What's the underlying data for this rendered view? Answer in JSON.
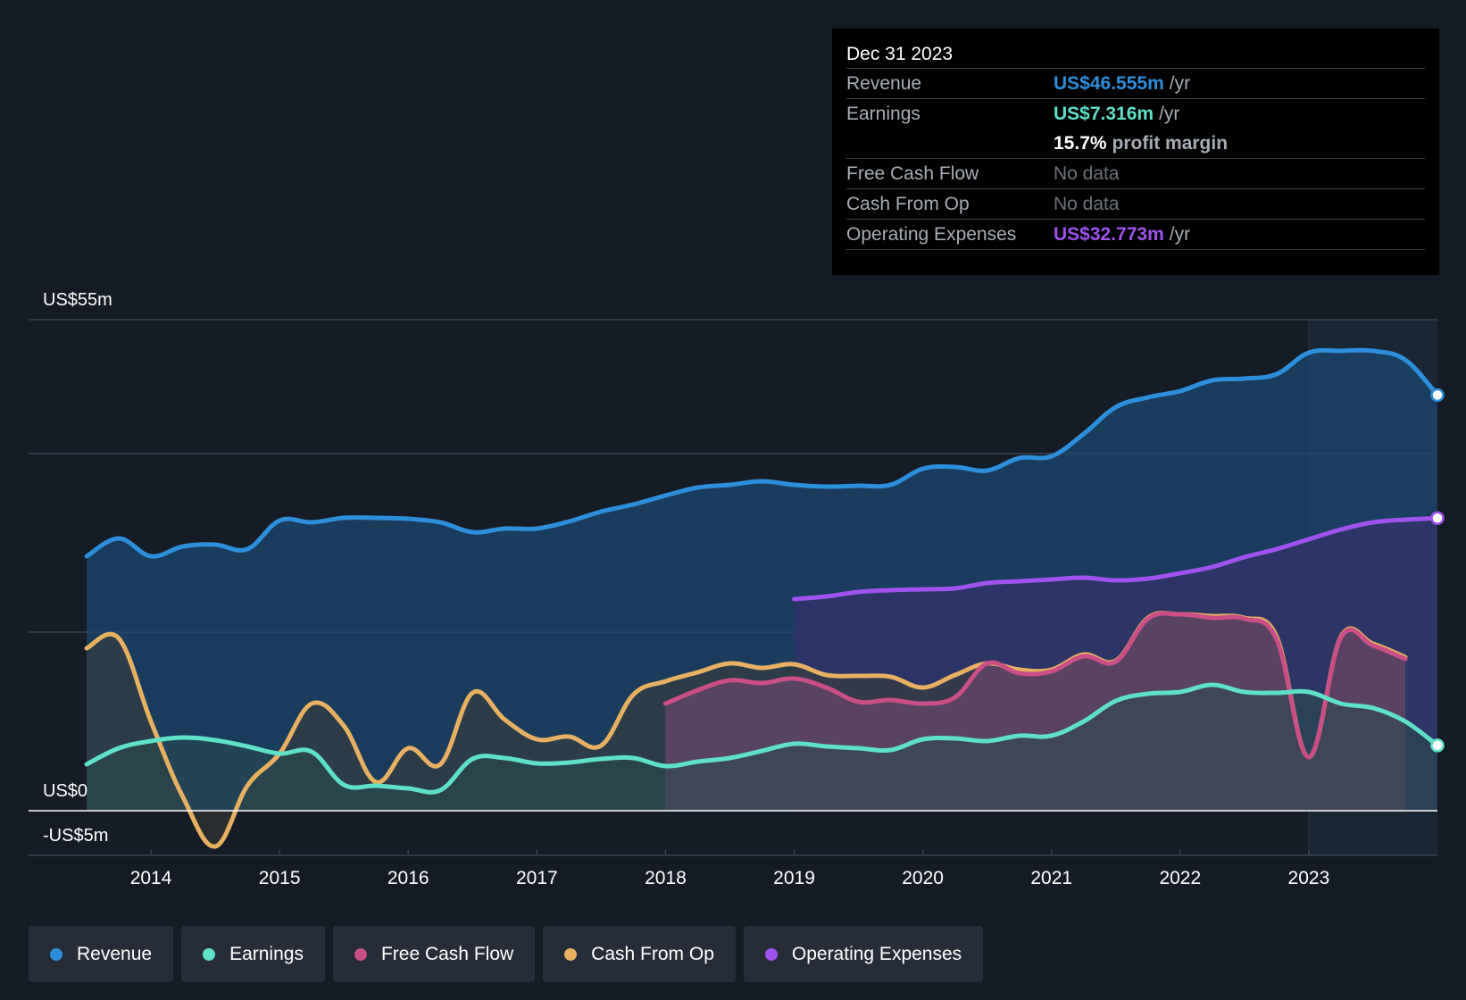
{
  "chart_data": {
    "type": "area",
    "ylim": [
      -5,
      55
    ],
    "y_labels": [
      {
        "value": 55,
        "label": "US$55m"
      },
      {
        "value": 0,
        "label": "US$0"
      },
      {
        "value": -5,
        "label": "-US$5m"
      }
    ],
    "gridlines": [
      55,
      40,
      20
    ],
    "x_ticks": [
      "2014",
      "2015",
      "2016",
      "2017",
      "2018",
      "2019",
      "2020",
      "2021",
      "2022",
      "2023"
    ],
    "x_tick_values": [
      2014,
      2015,
      2016,
      2017,
      2018,
      2019,
      2020,
      2021,
      2022,
      2023
    ],
    "xlim": [
      2013.5,
      2024.0
    ],
    "highlight_start": 2023.0,
    "series": [
      {
        "name": "Revenue",
        "color": "#2d8fdb",
        "fill": "#1c4a75",
        "x": [
          2013.5,
          2013.75,
          2014.0,
          2014.25,
          2014.5,
          2014.75,
          2015.0,
          2015.25,
          2015.5,
          2015.75,
          2016.0,
          2016.25,
          2016.5,
          2016.75,
          2017.0,
          2017.25,
          2017.5,
          2017.75,
          2018.0,
          2018.25,
          2018.5,
          2018.75,
          2019.0,
          2019.25,
          2019.5,
          2019.75,
          2020.0,
          2020.25,
          2020.5,
          2020.75,
          2021.0,
          2021.25,
          2021.5,
          2021.75,
          2022.0,
          2022.25,
          2022.5,
          2022.75,
          2023.0,
          2023.25,
          2023.5,
          2023.75,
          2024.0
        ],
        "values": [
          28.5,
          30.5,
          28.5,
          29.6,
          29.8,
          29.3,
          32.5,
          32.3,
          32.8,
          32.8,
          32.7,
          32.3,
          31.2,
          31.6,
          31.6,
          32.4,
          33.5,
          34.3,
          35.3,
          36.2,
          36.5,
          36.9,
          36.5,
          36.3,
          36.4,
          36.5,
          38.3,
          38.5,
          38.1,
          39.5,
          39.7,
          42.2,
          45.2,
          46.3,
          47.0,
          48.2,
          48.4,
          48.9,
          51.3,
          51.5,
          51.5,
          50.5,
          46.555
        ]
      },
      {
        "name": "Earnings",
        "color": "#5fe0c8",
        "fill": "#2a4a50",
        "x": [
          2013.5,
          2013.75,
          2014.0,
          2014.25,
          2014.5,
          2014.75,
          2015.0,
          2015.25,
          2015.5,
          2015.75,
          2016.0,
          2016.25,
          2016.5,
          2016.75,
          2017.0,
          2017.25,
          2017.5,
          2017.75,
          2018.0,
          2018.25,
          2018.5,
          2018.75,
          2019.0,
          2019.25,
          2019.5,
          2019.75,
          2020.0,
          2020.25,
          2020.5,
          2020.75,
          2021.0,
          2021.25,
          2021.5,
          2021.75,
          2022.0,
          2022.25,
          2022.5,
          2022.75,
          2023.0,
          2023.25,
          2023.5,
          2023.75,
          2024.0
        ],
        "values": [
          5.2,
          7.0,
          7.8,
          8.2,
          7.9,
          7.2,
          6.4,
          6.6,
          2.9,
          2.8,
          2.5,
          2.3,
          5.8,
          5.9,
          5.3,
          5.4,
          5.8,
          5.9,
          5.0,
          5.5,
          5.9,
          6.7,
          7.5,
          7.2,
          7.0,
          6.8,
          8.0,
          8.1,
          7.8,
          8.4,
          8.4,
          10.0,
          12.3,
          13.1,
          13.3,
          14.1,
          13.3,
          13.2,
          13.3,
          12.0,
          11.5,
          10.0,
          7.316
        ]
      },
      {
        "name": "Free Cash Flow",
        "color": "#c94f86",
        "fill": "#7a4a78",
        "x": [
          2018.0,
          2018.25,
          2018.5,
          2018.75,
          2019.0,
          2019.25,
          2019.5,
          2019.75,
          2020.0,
          2020.25,
          2020.5,
          2020.75,
          2021.0,
          2021.25,
          2021.5,
          2021.75,
          2022.0,
          2022.25,
          2022.5,
          2022.75,
          2023.0,
          2023.25,
          2023.5,
          2023.75
        ],
        "values": [
          12.0,
          13.5,
          14.6,
          14.3,
          14.8,
          13.8,
          12.2,
          12.4,
          12.0,
          12.7,
          16.5,
          15.4,
          15.6,
          17.3,
          16.7,
          21.5,
          22.0,
          21.6,
          21.5,
          19.2,
          6.0,
          19.4,
          18.5,
          17.0
        ]
      },
      {
        "name": "Cash From Op",
        "color": "#e8b060",
        "fill": "#3c3d36",
        "x": [
          2013.5,
          2013.75,
          2014.0,
          2014.25,
          2014.5,
          2014.75,
          2015.0,
          2015.25,
          2015.5,
          2015.75,
          2016.0,
          2016.25,
          2016.5,
          2016.75,
          2017.0,
          2017.25,
          2017.5,
          2017.75,
          2018.0,
          2018.25,
          2018.5,
          2018.75,
          2019.0,
          2019.25,
          2019.5,
          2019.75,
          2020.0,
          2020.25,
          2020.5,
          2020.75,
          2021.0,
          2021.25,
          2021.5,
          2021.75,
          2022.0,
          2022.25,
          2022.5,
          2022.75,
          2023.0,
          2023.25,
          2023.5,
          2023.75
        ],
        "values": [
          18.2,
          19.3,
          10.0,
          1.5,
          -4.0,
          2.8,
          6.4,
          12.0,
          9.5,
          3.2,
          7.0,
          5.2,
          13.2,
          10.2,
          8.0,
          8.3,
          7.3,
          13.0,
          14.5,
          15.5,
          16.5,
          16.0,
          16.4,
          15.2,
          15.1,
          15.0,
          13.8,
          15.2,
          16.5,
          15.8,
          15.8,
          17.5,
          16.8,
          21.6,
          22.0,
          21.8,
          21.6,
          19.5,
          6.0,
          19.5,
          18.7,
          17.2
        ]
      },
      {
        "name": "Operating Expenses",
        "color": "#a052ee",
        "fill": "#3d2f6c",
        "x": [
          2019.0,
          2019.25,
          2019.5,
          2019.75,
          2020.0,
          2020.25,
          2020.5,
          2020.75,
          2021.0,
          2021.25,
          2021.5,
          2021.75,
          2022.0,
          2022.25,
          2022.5,
          2022.75,
          2023.0,
          2023.25,
          2023.5,
          2023.75,
          2024.0
        ],
        "values": [
          23.7,
          24.0,
          24.5,
          24.7,
          24.8,
          24.9,
          25.5,
          25.7,
          25.9,
          26.1,
          25.8,
          26.0,
          26.6,
          27.3,
          28.4,
          29.3,
          30.4,
          31.5,
          32.3,
          32.6,
          32.773
        ]
      }
    ]
  },
  "tooltip": {
    "date": "Dec 31 2023",
    "revenue_label": "Revenue",
    "revenue_value": "US$46.555m",
    "revenue_unit": "/yr",
    "earnings_label": "Earnings",
    "earnings_value": "US$7.316m",
    "earnings_unit": "/yr",
    "margin_value": "15.7%",
    "margin_label": "profit margin",
    "fcf_label": "Free Cash Flow",
    "fcf_value": "No data",
    "cfo_label": "Cash From Op",
    "cfo_value": "No data",
    "opex_label": "Operating Expenses",
    "opex_value": "US$32.773m",
    "opex_unit": "/yr"
  },
  "legend": [
    {
      "label": "Revenue",
      "color": "#2d8fdb"
    },
    {
      "label": "Earnings",
      "color": "#5fe0c8"
    },
    {
      "label": "Free Cash Flow",
      "color": "#c94f86"
    },
    {
      "label": "Cash From Op",
      "color": "#e8b060"
    },
    {
      "label": "Operating Expenses",
      "color": "#a052ee"
    }
  ]
}
